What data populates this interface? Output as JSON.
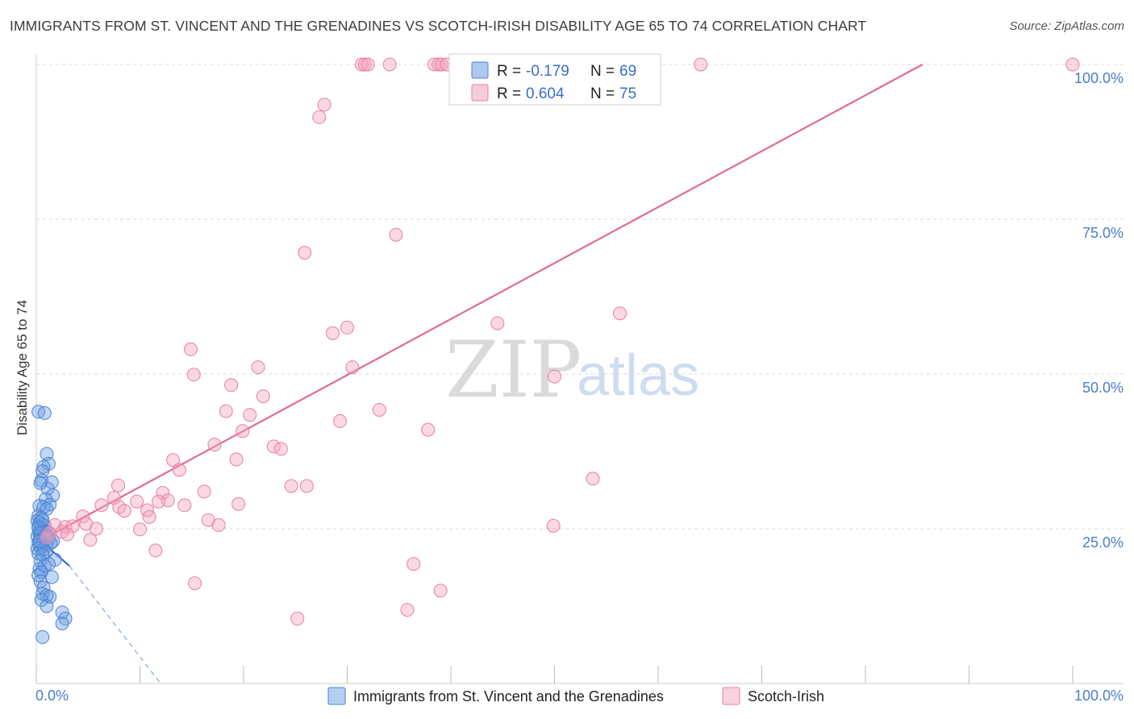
{
  "title": "IMMIGRANTS FROM ST. VINCENT AND THE GRENADINES VS SCOTCH-IRISH DISABILITY AGE 65 TO 74 CORRELATION CHART",
  "source": "Source: ZipAtlas.com",
  "watermark": {
    "zip": "ZIP",
    "atlas": "atlas"
  },
  "chart_data": {
    "type": "scatter",
    "title": "IMMIGRANTS FROM ST. VINCENT AND THE GRENADINES VS SCOTCH-IRISH DISABILITY AGE 65 TO 74 CORRELATION CHART",
    "xlabel": "",
    "ylabel": "Disability Age 65 to 74",
    "xlim": [
      0,
      100
    ],
    "ylim": [
      0,
      100
    ],
    "x_tick_labels": [
      "0.0%",
      "100.0%"
    ],
    "y_ticks": [
      25,
      50,
      75,
      100
    ],
    "y_tick_labels": [
      "25.0%",
      "50.0%",
      "75.0%",
      "100.0%"
    ],
    "grid": true,
    "legend_position": "top-center",
    "series": [
      {
        "name": "Immigrants from St. Vincent and the Grenadines",
        "color": "#6a9de0",
        "stroke": "#4b82d6",
        "R": "-0.179",
        "N": "69",
        "trend": {
          "x0": 0.3,
          "y0": 23.2,
          "x1": 3.2,
          "y1": 19.0,
          "dash_x1": 12.0,
          "dash_y1": 0.0
        },
        "points": [
          [
            0.2,
            43.9
          ],
          [
            0.8,
            43.7
          ],
          [
            1.0,
            37.1
          ],
          [
            1.2,
            35.5
          ],
          [
            0.7,
            35.0
          ],
          [
            0.6,
            34.3
          ],
          [
            0.5,
            32.8
          ],
          [
            1.1,
            31.5
          ],
          [
            0.4,
            32.4
          ],
          [
            1.5,
            32.5
          ],
          [
            1.6,
            30.4
          ],
          [
            0.9,
            29.8
          ],
          [
            1.3,
            28.9
          ],
          [
            0.3,
            28.7
          ],
          [
            0.7,
            28.5
          ],
          [
            1.0,
            28.2
          ],
          [
            0.2,
            27.1
          ],
          [
            0.5,
            26.8
          ],
          [
            0.1,
            26.3
          ],
          [
            0.3,
            26.0
          ],
          [
            0.6,
            25.7
          ],
          [
            0.8,
            25.5
          ],
          [
            0.2,
            25.3
          ],
          [
            0.4,
            25.0
          ],
          [
            0.7,
            24.8
          ],
          [
            0.9,
            24.6
          ],
          [
            1.1,
            24.4
          ],
          [
            0.3,
            24.2
          ],
          [
            0.5,
            24.0
          ],
          [
            0.1,
            23.8
          ],
          [
            0.8,
            23.6
          ],
          [
            1.2,
            23.4
          ],
          [
            0.4,
            23.2
          ],
          [
            1.6,
            23.0
          ],
          [
            0.2,
            22.8
          ],
          [
            0.6,
            22.6
          ],
          [
            1.0,
            22.4
          ],
          [
            0.3,
            22.2
          ],
          [
            1.4,
            22.7
          ],
          [
            0.5,
            22.0
          ],
          [
            0.1,
            21.8
          ],
          [
            0.7,
            21.6
          ],
          [
            0.9,
            21.2
          ],
          [
            0.2,
            21.0
          ],
          [
            0.6,
            20.8
          ],
          [
            1.8,
            20.0
          ],
          [
            0.4,
            19.8
          ],
          [
            0.8,
            19.0
          ],
          [
            1.2,
            19.3
          ],
          [
            0.3,
            18.5
          ],
          [
            0.5,
            18.0
          ],
          [
            0.2,
            17.5
          ],
          [
            1.5,
            17.2
          ],
          [
            0.4,
            16.5
          ],
          [
            0.7,
            15.5
          ],
          [
            0.6,
            14.5
          ],
          [
            1.3,
            14.0
          ],
          [
            1.0,
            14.2
          ],
          [
            0.5,
            13.5
          ],
          [
            1.0,
            12.5
          ],
          [
            2.5,
            11.5
          ],
          [
            2.8,
            10.5
          ],
          [
            2.5,
            9.7
          ],
          [
            0.6,
            7.5
          ],
          [
            0.2,
            25.1
          ],
          [
            0.4,
            24.3
          ],
          [
            0.9,
            23.9
          ],
          [
            0.3,
            23.0
          ],
          [
            0.6,
            26.5
          ]
        ]
      },
      {
        "name": "Scotch-Irish",
        "color": "#f4a3bf",
        "stroke": "#e87ea4",
        "R": "0.604",
        "N": "75",
        "trend": {
          "x0": 0.3,
          "y0": 23.0,
          "x1": 85.5,
          "y1": 100.0
        },
        "points": [
          [
            31.4,
            100
          ],
          [
            31.7,
            100
          ],
          [
            32.0,
            100
          ],
          [
            34.1,
            100
          ],
          [
            38.4,
            100
          ],
          [
            38.8,
            100
          ],
          [
            39.1,
            100
          ],
          [
            39.6,
            100
          ],
          [
            64.1,
            100
          ],
          [
            100.0,
            100
          ],
          [
            27.8,
            93.5
          ],
          [
            27.3,
            91.5
          ],
          [
            34.7,
            72.5
          ],
          [
            25.9,
            69.6
          ],
          [
            56.3,
            59.8
          ],
          [
            44.5,
            58.2
          ],
          [
            30.0,
            57.5
          ],
          [
            28.6,
            56.6
          ],
          [
            14.9,
            54.0
          ],
          [
            15.2,
            49.9
          ],
          [
            21.4,
            51.1
          ],
          [
            30.5,
            51.1
          ],
          [
            50.0,
            49.6
          ],
          [
            18.8,
            48.2
          ],
          [
            21.9,
            46.4
          ],
          [
            33.1,
            44.2
          ],
          [
            18.3,
            44.0
          ],
          [
            20.6,
            43.4
          ],
          [
            29.3,
            42.4
          ],
          [
            19.9,
            40.8
          ],
          [
            37.8,
            41.0
          ],
          [
            17.2,
            38.6
          ],
          [
            22.9,
            38.3
          ],
          [
            23.6,
            37.9
          ],
          [
            13.2,
            36.1
          ],
          [
            19.3,
            36.2
          ],
          [
            13.8,
            34.5
          ],
          [
            53.7,
            33.1
          ],
          [
            7.9,
            32.0
          ],
          [
            24.6,
            31.9
          ],
          [
            26.1,
            31.9
          ],
          [
            16.2,
            31.0
          ],
          [
            12.2,
            30.8
          ],
          [
            7.5,
            30.0
          ],
          [
            12.7,
            29.6
          ],
          [
            9.7,
            29.4
          ],
          [
            11.8,
            29.4
          ],
          [
            14.3,
            28.8
          ],
          [
            19.5,
            29.0
          ],
          [
            6.3,
            28.8
          ],
          [
            8.0,
            28.5
          ],
          [
            10.7,
            28.0
          ],
          [
            8.5,
            27.9
          ],
          [
            4.5,
            27.0
          ],
          [
            10.9,
            26.9
          ],
          [
            16.6,
            26.4
          ],
          [
            4.8,
            25.8
          ],
          [
            1.8,
            25.6
          ],
          [
            2.8,
            25.3
          ],
          [
            3.5,
            25.4
          ],
          [
            17.6,
            25.6
          ],
          [
            10.0,
            24.9
          ],
          [
            2.5,
            24.5
          ],
          [
            1.3,
            24.3
          ],
          [
            3.0,
            24.1
          ],
          [
            1.0,
            23.6
          ],
          [
            5.2,
            23.2
          ],
          [
            15.3,
            16.2
          ],
          [
            11.5,
            21.5
          ],
          [
            36.4,
            19.3
          ],
          [
            25.2,
            10.5
          ],
          [
            35.8,
            11.9
          ],
          [
            39.0,
            15.0
          ],
          [
            49.9,
            25.5
          ],
          [
            5.8,
            25.0
          ]
        ]
      }
    ]
  }
}
